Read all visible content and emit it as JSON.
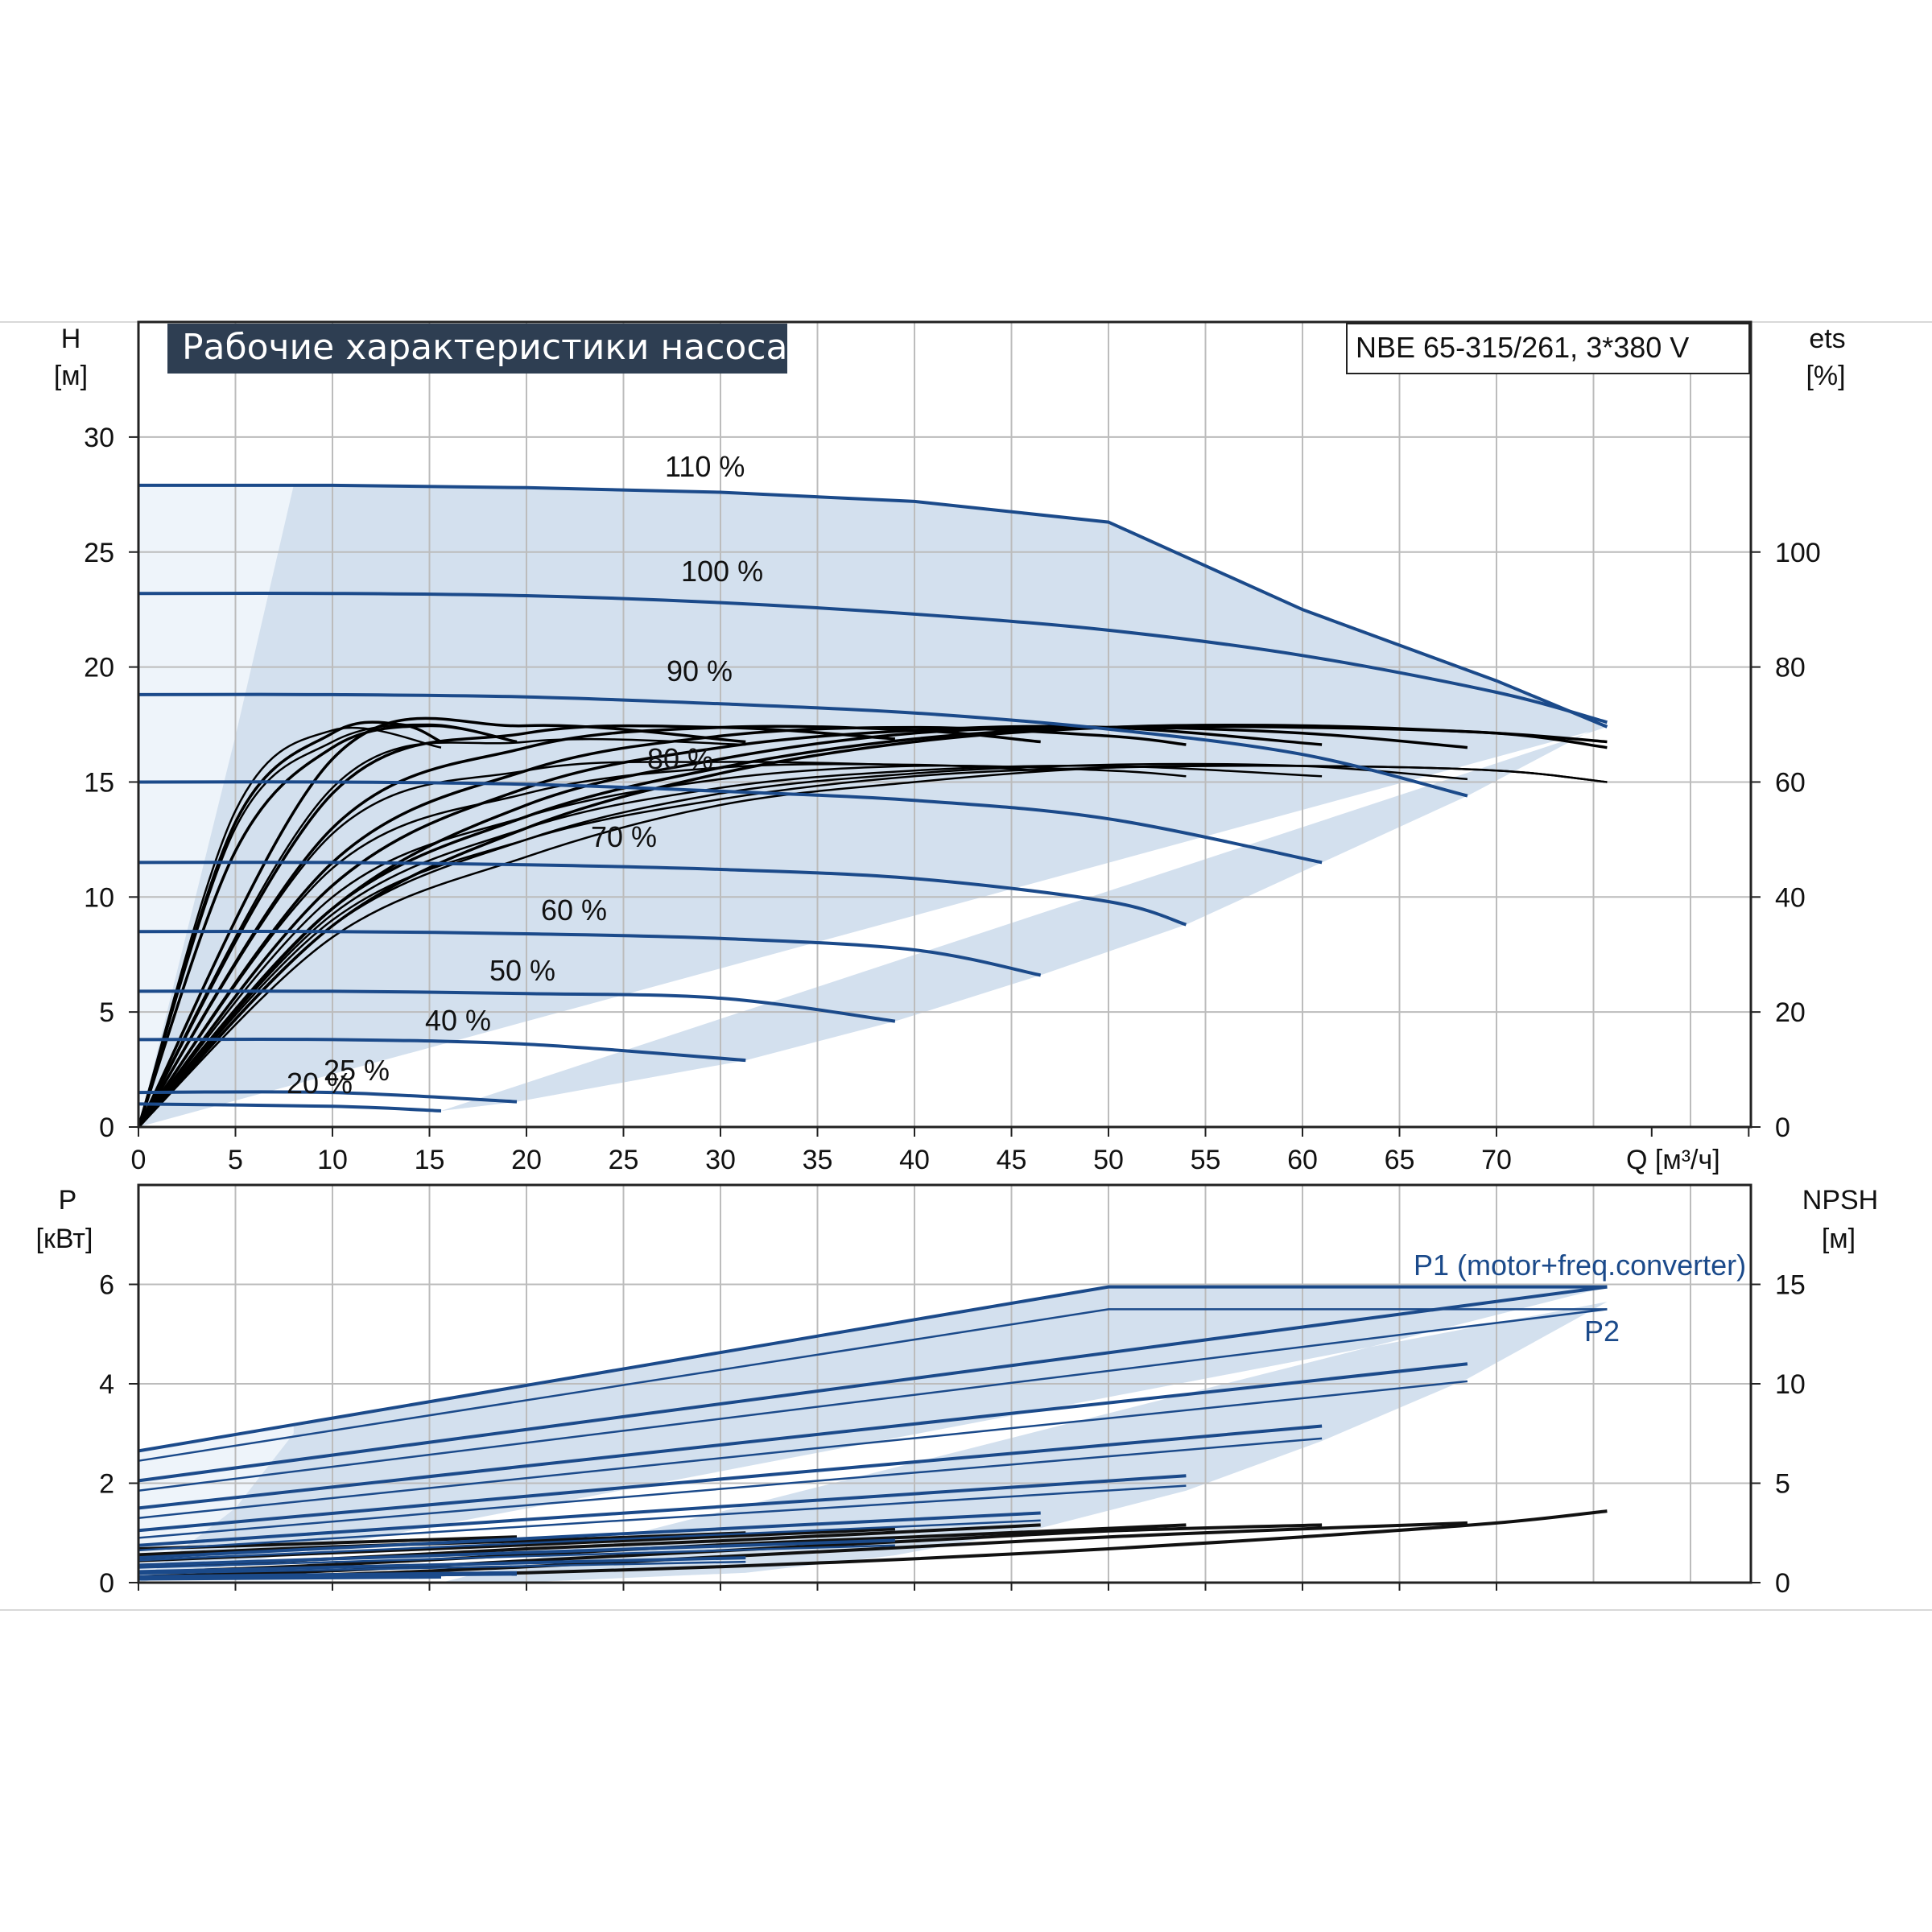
{
  "title": "Рабочие характеристики насоса",
  "model": "NBE 65-315/261, 3*380 V",
  "colors": {
    "curve": "#1b4a8a",
    "area": "#d3e0ee",
    "area_light": "#eef4fa",
    "efficiency": "#000000",
    "grid": "#bcbcbc",
    "title_bg": "#2e3e52"
  },
  "chart_data": [
    {
      "type": "line",
      "name": "head",
      "ylabel": "H",
      "yunit": "[м]",
      "y2label": "ets",
      "y2unit": "[%]",
      "xlabel": "Q [м³/ч]",
      "xlim": [
        0,
        83
      ],
      "ylim": [
        0,
        35
      ],
      "y2lim": [
        0,
        140
      ],
      "x_ticks": [
        0,
        5,
        10,
        15,
        20,
        25,
        30,
        35,
        40,
        45,
        50,
        55,
        60,
        65,
        70
      ],
      "y_ticks": [
        0,
        5,
        10,
        15,
        20,
        25,
        30
      ],
      "y2_ticks": [
        0,
        20,
        40,
        60,
        80,
        100
      ],
      "grid": true,
      "series": [
        {
          "name": "110 %",
          "x": [
            0,
            10,
            20,
            30,
            40,
            50,
            60,
            70,
            75.7
          ],
          "y": [
            27.9,
            27.9,
            27.8,
            27.6,
            27.2,
            26.3,
            22.5,
            19.4,
            17.4
          ]
        },
        {
          "name": "100 %",
          "x": [
            0,
            10,
            20,
            30,
            40,
            50,
            60,
            70,
            75.7
          ],
          "y": [
            23.2,
            23.2,
            23.1,
            22.8,
            22.3,
            21.6,
            20.5,
            18.9,
            17.6
          ]
        },
        {
          "name": "90 %",
          "x": [
            0,
            10,
            20,
            30,
            40,
            50,
            60,
            68.5
          ],
          "y": [
            18.8,
            18.8,
            18.7,
            18.4,
            18.0,
            17.3,
            16.2,
            14.4
          ]
        },
        {
          "name": "80 %",
          "x": [
            0,
            10,
            20,
            30,
            40,
            50,
            61
          ],
          "y": [
            15.0,
            15.0,
            14.9,
            14.6,
            14.2,
            13.4,
            11.5
          ]
        },
        {
          "name": "70 %",
          "x": [
            0,
            10,
            20,
            30,
            40,
            50,
            54
          ],
          "y": [
            11.5,
            11.5,
            11.4,
            11.2,
            10.8,
            9.8,
            8.8
          ]
        },
        {
          "name": "60 %",
          "x": [
            0,
            10,
            20,
            30,
            40,
            46.5
          ],
          "y": [
            8.5,
            8.5,
            8.4,
            8.2,
            7.7,
            6.6
          ]
        },
        {
          "name": "50 %",
          "x": [
            0,
            10,
            20,
            30,
            39
          ],
          "y": [
            5.9,
            5.9,
            5.8,
            5.6,
            4.6
          ]
        },
        {
          "name": "40 %",
          "x": [
            0,
            10,
            20,
            31.3
          ],
          "y": [
            3.8,
            3.8,
            3.6,
            2.9
          ]
        },
        {
          "name": "25 %",
          "x": [
            0,
            10,
            19.5
          ],
          "y": [
            1.5,
            1.5,
            1.1
          ]
        },
        {
          "name": "20 %",
          "x": [
            0,
            10,
            15.6
          ],
          "y": [
            1.0,
            0.9,
            0.7
          ]
        }
      ],
      "efficiency_series": [
        {
          "x": [
            0,
            10,
            20,
            30,
            40,
            50,
            60,
            70,
            75.7
          ],
          "y": [
            0,
            36,
            50,
            57,
            61,
            62.5,
            62.8,
            62,
            60
          ]
        },
        {
          "x": [
            0,
            10,
            20,
            30,
            40,
            50,
            60,
            70,
            75.7
          ],
          "y": [
            0,
            33,
            47,
            56,
            60,
            62.5,
            62.8,
            62,
            60
          ]
        },
        {
          "x": [
            0,
            10,
            20,
            30,
            40,
            50,
            60,
            68.5
          ],
          "y": [
            0,
            35,
            50,
            58,
            61.5,
            63,
            62.8,
            60.5
          ]
        },
        {
          "x": [
            0,
            10,
            20,
            30,
            40,
            50,
            61
          ],
          "y": [
            0,
            37,
            52,
            59,
            62,
            62.8,
            61
          ]
        },
        {
          "x": [
            0,
            10,
            20,
            30,
            40,
            50,
            54
          ],
          "y": [
            0,
            40,
            54,
            60.5,
            62.8,
            62,
            61
          ]
        },
        {
          "x": [
            0,
            10,
            20,
            30,
            40,
            46.5
          ],
          "y": [
            0,
            45,
            58,
            62.5,
            63,
            62
          ]
        },
        {
          "x": [
            0,
            10,
            20,
            30,
            39
          ],
          "y": [
            0,
            51,
            62,
            63.5,
            63
          ]
        },
        {
          "x": [
            0,
            10,
            20,
            31.3
          ],
          "y": [
            0,
            59,
            67,
            66.5
          ]
        },
        {
          "x": [
            0,
            5,
            10,
            15,
            19.5
          ],
          "y": [
            0,
            52,
            67,
            70,
            67
          ]
        },
        {
          "x": [
            0,
            5,
            10,
            15.6
          ],
          "y": [
            0,
            55,
            69,
            66
          ]
        },
        {
          "x": [
            0,
            10,
            20,
            30,
            40,
            50,
            60,
            70,
            75.7
          ],
          "y": [
            0,
            38,
            54,
            62.5,
            67.5,
            69.5,
            69.5,
            68.5,
            66
          ]
        },
        {
          "x": [
            0,
            10,
            20,
            30,
            40,
            50,
            60,
            70,
            75.7
          ],
          "y": [
            0,
            35,
            52,
            61.5,
            67,
            69.5,
            69.8,
            68.5,
            67
          ]
        },
        {
          "x": [
            0,
            10,
            20,
            30,
            40,
            50,
            60,
            68.5
          ],
          "y": [
            0,
            38,
            56,
            64,
            68.5,
            69.5,
            68.5,
            66
          ]
        },
        {
          "x": [
            0,
            10,
            20,
            30,
            40,
            50,
            61
          ],
          "y": [
            0,
            42,
            59,
            66,
            69,
            69.5,
            66.5
          ]
        },
        {
          "x": [
            0,
            10,
            20,
            30,
            40,
            50,
            54
          ],
          "y": [
            0,
            46,
            62,
            68,
            69.5,
            68,
            66.5
          ]
        },
        {
          "x": [
            0,
            10,
            20,
            30,
            40,
            46.5
          ],
          "y": [
            0,
            52,
            66,
            69.5,
            69,
            67
          ]
        },
        {
          "x": [
            0,
            10,
            20,
            30,
            39
          ],
          "y": [
            0,
            58,
            68.5,
            69.5,
            67.5
          ]
        },
        {
          "x": [
            0,
            10,
            20,
            31.3
          ],
          "y": [
            0,
            64,
            69.8,
            67
          ]
        },
        {
          "x": [
            0,
            5,
            10,
            15,
            19.5
          ],
          "y": [
            0,
            48,
            66,
            69.8,
            67
          ]
        },
        {
          "x": [
            0,
            5,
            10,
            13.5,
            15.6
          ],
          "y": [
            0,
            53,
            68.5,
            70,
            67
          ]
        }
      ]
    },
    {
      "type": "line",
      "name": "power",
      "ylabel": "P",
      "yunit": "[кВт]",
      "y2label": "NPSH",
      "y2unit": "[м]",
      "xlim": [
        0,
        83
      ],
      "ylim": [
        0,
        8
      ],
      "y2lim": [
        0,
        20
      ],
      "y_ticks": [
        0,
        2,
        4,
        6
      ],
      "y2_ticks": [
        0,
        5,
        10,
        15
      ],
      "grid": true,
      "labels": {
        "p1": "P1 (motor+freq.converter)",
        "p2": "P2"
      },
      "p1_series": [
        {
          "x": [
            0,
            50,
            75.7
          ],
          "y": [
            2.65,
            5.95,
            5.95
          ]
        },
        {
          "x": [
            0,
            75.7
          ],
          "y": [
            2.05,
            5.95
          ]
        },
        {
          "x": [
            0,
            68.5
          ],
          "y": [
            1.5,
            4.4
          ]
        },
        {
          "x": [
            0,
            61
          ],
          "y": [
            1.05,
            3.15
          ]
        },
        {
          "x": [
            0,
            54
          ],
          "y": [
            0.75,
            2.15
          ]
        },
        {
          "x": [
            0,
            46.5
          ],
          "y": [
            0.5,
            1.4
          ]
        },
        {
          "x": [
            0,
            39
          ],
          "y": [
            0.35,
            0.85
          ]
        },
        {
          "x": [
            0,
            31.3
          ],
          "y": [
            0.22,
            0.5
          ]
        },
        {
          "x": [
            0,
            19.5
          ],
          "y": [
            0.12,
            0.2
          ]
        },
        {
          "x": [
            0,
            15.6
          ],
          "y": [
            0.08,
            0.12
          ]
        }
      ],
      "p2_series": [
        {
          "x": [
            0,
            50,
            75.7
          ],
          "y": [
            2.45,
            5.5,
            5.5
          ]
        },
        {
          "x": [
            0,
            75.7
          ],
          "y": [
            1.85,
            5.5
          ]
        },
        {
          "x": [
            0,
            68.5
          ],
          "y": [
            1.3,
            4.05
          ]
        },
        {
          "x": [
            0,
            61
          ],
          "y": [
            0.9,
            2.9
          ]
        },
        {
          "x": [
            0,
            54
          ],
          "y": [
            0.65,
            1.95
          ]
        },
        {
          "x": [
            0,
            46.5
          ],
          "y": [
            0.45,
            1.25
          ]
        },
        {
          "x": [
            0,
            39
          ],
          "y": [
            0.3,
            0.75
          ]
        },
        {
          "x": [
            0,
            31.3
          ],
          "y": [
            0.18,
            0.42
          ]
        },
        {
          "x": [
            0,
            19.5
          ],
          "y": [
            0.1,
            0.16
          ]
        },
        {
          "x": [
            0,
            15.6
          ],
          "y": [
            0.06,
            0.1
          ]
        }
      ],
      "npsh_series": [
        {
          "x": [
            0,
            10,
            20,
            30,
            40,
            50,
            60,
            70,
            75.7
          ],
          "y": [
            0.2,
            0.3,
            0.5,
            0.8,
            1.2,
            1.7,
            2.3,
            3.0,
            3.6
          ]
        },
        {
          "x": [
            0,
            10,
            20,
            30,
            40,
            50,
            60,
            68.5
          ],
          "y": [
            0.2,
            0.4,
            0.8,
            1.3,
            1.8,
            2.3,
            2.7,
            3.0
          ]
        },
        {
          "x": [
            0,
            10,
            20,
            30,
            40,
            50,
            61
          ],
          "y": [
            0.3,
            0.6,
            1.1,
            1.6,
            2.1,
            2.6,
            2.9
          ]
        },
        {
          "x": [
            0,
            10,
            20,
            30,
            40,
            54
          ],
          "y": [
            0.5,
            0.9,
            1.4,
            1.9,
            2.3,
            2.9
          ]
        },
        {
          "x": [
            0,
            10,
            20,
            30,
            46.5
          ],
          "y": [
            0.8,
            1.2,
            1.7,
            2.1,
            2.9
          ]
        },
        {
          "x": [
            0,
            10,
            20,
            39
          ],
          "y": [
            1.1,
            1.5,
            1.9,
            2.7
          ]
        },
        {
          "x": [
            0,
            10,
            20,
            31.3
          ],
          "y": [
            1.4,
            1.8,
            2.1,
            2.5
          ]
        },
        {
          "x": [
            0,
            10,
            19.5
          ],
          "y": [
            1.7,
            2.0,
            2.3
          ]
        }
      ]
    }
  ],
  "curve_labels": [
    "110 %",
    "100 %",
    "90 %",
    "80 %",
    "70 %",
    "60 %",
    "50 %",
    "40 %",
    "25 %",
    "20 %"
  ]
}
